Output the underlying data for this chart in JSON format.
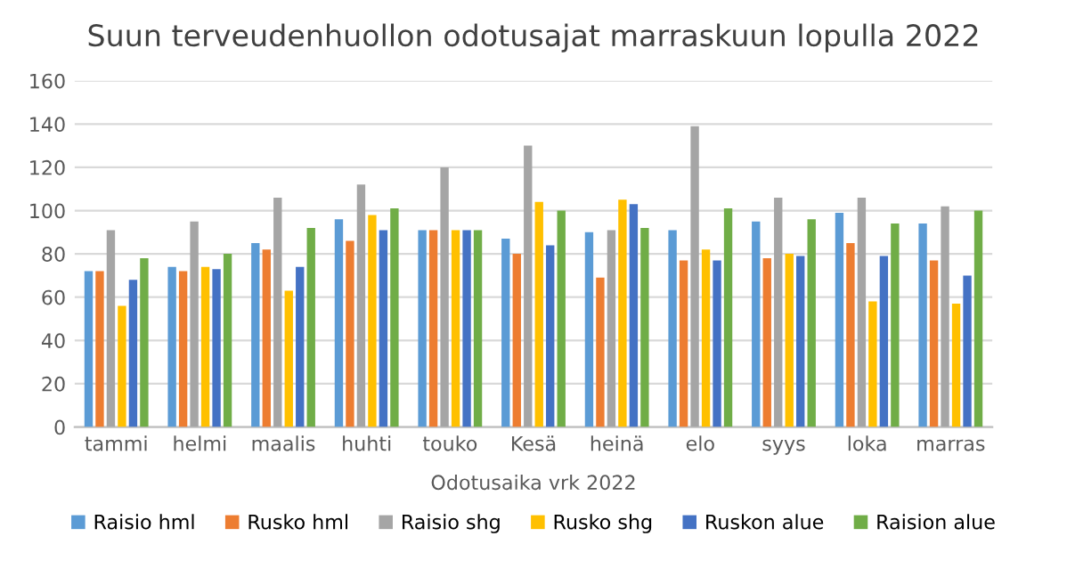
{
  "chart_data": {
    "type": "bar",
    "title": "Suun terveudenhuollon odotusajat marraskuun lopulla 2022",
    "xlabel": "Odotusaika vrk 2022",
    "categories": [
      "tammi",
      "helmi",
      "maalis",
      "huhti",
      "touko",
      "Kesä",
      "heinä",
      "elo",
      "syys",
      "loka",
      "marras"
    ],
    "series": [
      {
        "name": "Raisio hml",
        "color": "#5b9bd5",
        "values": [
          72,
          74,
          85,
          96,
          91,
          87,
          90,
          91,
          95,
          99,
          94
        ]
      },
      {
        "name": "Rusko hml",
        "color": "#ed7d31",
        "values": [
          72,
          72,
          82,
          86,
          91,
          80,
          69,
          77,
          78,
          85,
          77
        ]
      },
      {
        "name": "Raisio shg",
        "color": "#a5a5a5",
        "values": [
          91,
          95,
          106,
          112,
          120,
          130,
          91,
          139,
          106,
          106,
          102
        ]
      },
      {
        "name": "Rusko shg",
        "color": "#ffc000",
        "values": [
          56,
          74,
          63,
          98,
          91,
          104,
          105,
          82,
          80,
          58,
          57
        ]
      },
      {
        "name": "Ruskon alue",
        "color": "#4472c4",
        "values": [
          68,
          73,
          74,
          91,
          91,
          84,
          103,
          77,
          79,
          79,
          70
        ]
      },
      {
        "name": "Raision alue",
        "color": "#70ad47",
        "values": [
          78,
          80,
          92,
          101,
          91,
          100,
          92,
          101,
          96,
          94,
          100
        ]
      }
    ],
    "ylim": [
      0,
      160
    ],
    "yticks": [
      0,
      20,
      40,
      60,
      80,
      100,
      120,
      140,
      160
    ],
    "grid": "y",
    "legend": "bottom"
  }
}
